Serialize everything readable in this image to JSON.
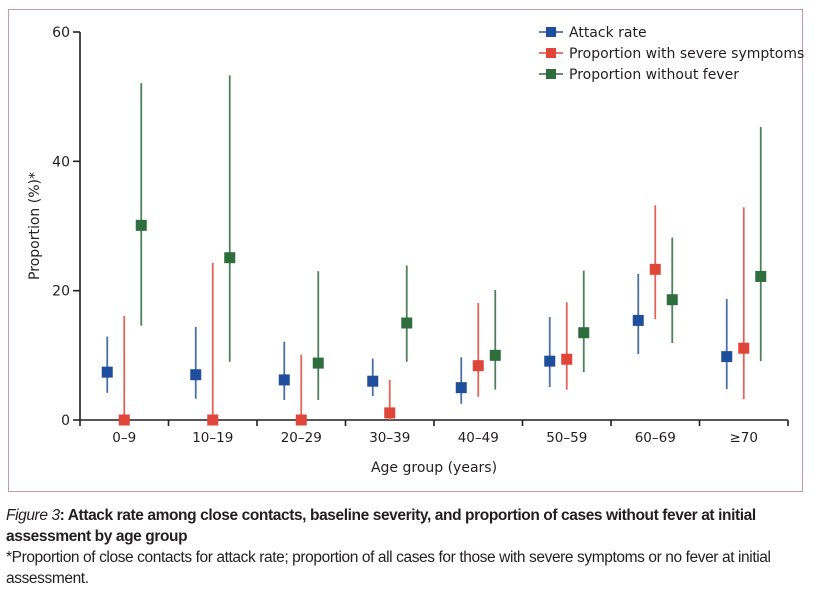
{
  "chart_data": {
    "type": "scatter",
    "subtype": "point-with-error-bars",
    "title": "",
    "xlabel": "Age group (years)",
    "ylabel": "Proportion (%)*",
    "ylim": [
      0,
      60
    ],
    "yticks": [
      0,
      20,
      40,
      60
    ],
    "grid": false,
    "legend_position": "top-right",
    "categories": [
      "0–9",
      "10–19",
      "20–29",
      "30–39",
      "40–49",
      "50–59",
      "60–69",
      "≥70"
    ],
    "series": [
      {
        "name": "Attack rate",
        "color": "#1f4e9c",
        "whisker_color": "#4a6fa8",
        "values": [
          7.4,
          7.0,
          6.2,
          6.0,
          5.0,
          9.1,
          15.4,
          9.8
        ],
        "lower": [
          4.2,
          3.3,
          3.1,
          3.7,
          2.5,
          5.1,
          10.2,
          4.8
        ],
        "upper": [
          12.9,
          14.4,
          12.1,
          9.5,
          9.7,
          15.9,
          22.6,
          18.7
        ]
      },
      {
        "name": "Proportion with severe symptoms",
        "color": "#e0453a",
        "whisker_color": "#e0645a",
        "values": [
          0,
          0,
          0,
          1.1,
          8.4,
          9.4,
          23.3,
          11.1
        ],
        "lower": [
          0,
          0,
          0,
          0,
          3.6,
          4.7,
          15.6,
          3.2
        ],
        "upper": [
          16.1,
          24.3,
          10.1,
          6.2,
          18.1,
          18.2,
          33.2,
          32.9
        ]
      },
      {
        "name": "Proportion without fever",
        "color": "#2d6e3c",
        "whisker_color": "#4f7f5c",
        "values": [
          30.1,
          25.1,
          8.8,
          15.0,
          10.0,
          13.5,
          18.6,
          22.2
        ],
        "lower": [
          14.6,
          9.0,
          3.1,
          9.0,
          4.7,
          7.4,
          11.9,
          9.1
        ],
        "upper": [
          52.1,
          53.3,
          23.0,
          23.9,
          20.1,
          23.1,
          28.2,
          45.3
        ]
      }
    ]
  },
  "caption": {
    "figure_label": "Figure 3",
    "title": ": Attack rate among close contacts, baseline severity, and proportion of cases without fever at initial assessment by age group",
    "note": "*Proportion of close contacts for attack rate; proportion of all cases for those with severe symptoms or no fever at initial assessment."
  }
}
